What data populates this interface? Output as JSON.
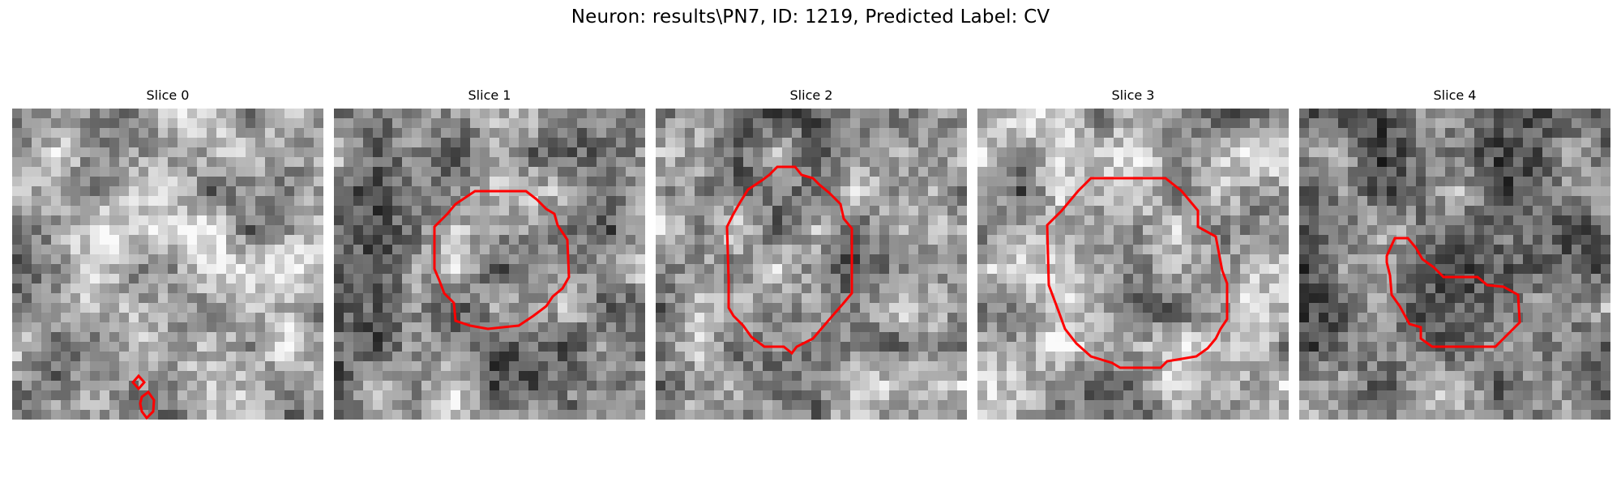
{
  "figure": {
    "title": "Neuron: results\\PN7, ID: 1219, Predicted Label: CV"
  },
  "panels": [
    {
      "title": "Slice 0",
      "base": 172,
      "seed": 11,
      "contour_color": "#ff0000"
    },
    {
      "title": "Slice 1",
      "base": 140,
      "seed": 23,
      "contour_color": "#ff0000"
    },
    {
      "title": "Slice 2",
      "base": 150,
      "seed": 37,
      "contour_color": "#ff0000"
    },
    {
      "title": "Slice 3",
      "base": 160,
      "seed": 41,
      "contour_color": "#ff0000"
    },
    {
      "title": "Slice 4",
      "base": 130,
      "seed": 53,
      "contour_color": "#ff0000"
    }
  ]
}
